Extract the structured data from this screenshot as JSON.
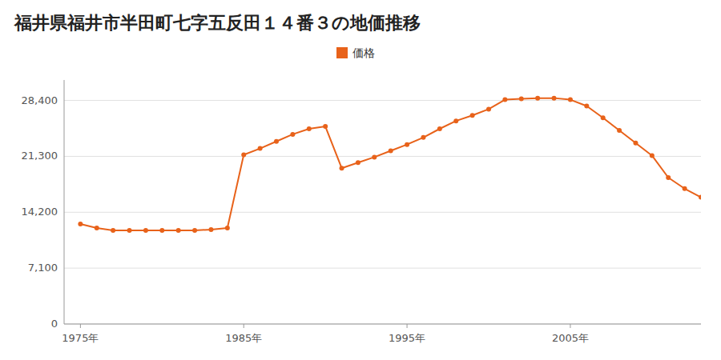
{
  "chart_data": {
    "type": "line",
    "title": "福井県福井市半田町七字五反田１４番３の地価推移",
    "x": [
      1975,
      1976,
      1977,
      1978,
      1979,
      1980,
      1981,
      1982,
      1983,
      1984,
      1985,
      1986,
      1987,
      1988,
      1989,
      1990,
      1991,
      1992,
      1993,
      1994,
      1995,
      1996,
      1997,
      1998,
      1999,
      2000,
      2001,
      2002,
      2003,
      2004,
      2005,
      2006,
      2007,
      2008,
      2009,
      2010,
      2011,
      2012,
      2013
    ],
    "series": [
      {
        "name": "価格",
        "color": "#e8621a",
        "marker": "circle",
        "values": [
          12700,
          12200,
          11900,
          11900,
          11900,
          11900,
          11900,
          11900,
          12000,
          12200,
          21500,
          22300,
          23200,
          24100,
          24800,
          25100,
          19800,
          20500,
          21200,
          22000,
          22800,
          23700,
          24800,
          25800,
          26500,
          27300,
          28500,
          28600,
          28700,
          28700,
          28500,
          27700,
          26200,
          24600,
          23000,
          21400,
          18600,
          17200,
          16100
        ]
      }
    ],
    "xlim": [
      1974,
      2013
    ],
    "xticks": [
      {
        "value": 1975,
        "label": "1975年"
      },
      {
        "value": 1985,
        "label": "1985年"
      },
      {
        "value": 1995,
        "label": "1995年"
      },
      {
        "value": 2005,
        "label": "2005年"
      }
    ],
    "ylim": [
      0,
      31000
    ],
    "yticks": [
      0,
      {
        "value": 7100,
        "label": "7,100"
      },
      {
        "value": 14200,
        "label": "14,200"
      },
      {
        "value": 21300,
        "label": "21,300"
      },
      {
        "value": 28400,
        "label": "28,400"
      }
    ],
    "grid": true,
    "legend": "top"
  }
}
